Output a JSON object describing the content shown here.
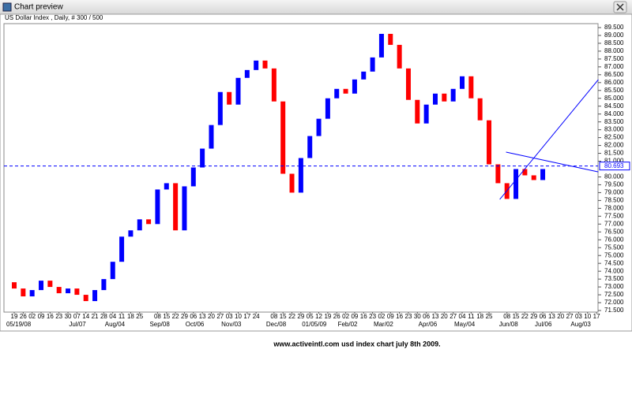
{
  "window_title": "Chart preview",
  "caption": "www.activeintl.com usd index chart july 8th 2009.",
  "chart_data": {
    "type": "candlestick",
    "title": "US Dollar Index , Daily, # 300 / 500",
    "categories": [
      "19",
      "26",
      "02",
      "09",
      "16",
      "23",
      "30",
      "07",
      "14",
      "21",
      "28",
      "04",
      "11",
      "18",
      "25",
      null,
      "08",
      "15",
      "22",
      "29",
      "06",
      "13",
      "20",
      "27",
      "03",
      "10",
      "17",
      "24",
      null,
      "08",
      "15",
      "22",
      "29",
      "05",
      "12",
      "19",
      "26",
      "02",
      "09",
      "16",
      "23",
      "02",
      "09",
      "16",
      "23",
      "30",
      "06",
      "13",
      "20",
      "27",
      "04",
      "11",
      "18",
      "25",
      null,
      "08",
      "15",
      "22",
      "29",
      "06",
      "13",
      "20",
      "27",
      "03",
      "10",
      "17"
    ],
    "period_labels": [
      "05/19/08",
      null,
      null,
      null,
      null,
      null,
      null,
      "Jul/07",
      null,
      null,
      null,
      "Aug/04",
      null,
      null,
      null,
      null,
      "Sep/08",
      null,
      null,
      null,
      "Oct/06",
      null,
      null,
      null,
      "Nov/03",
      null,
      null,
      null,
      null,
      "Dec/08",
      null,
      null,
      null,
      "01/05/09",
      null,
      null,
      null,
      "Feb/02",
      null,
      null,
      null,
      "Mar/02",
      null,
      null,
      null,
      null,
      "Apr/06",
      null,
      null,
      null,
      "May/04",
      null,
      null,
      null,
      null,
      "Jun/08",
      null,
      null,
      null,
      "Jul/06",
      null,
      null,
      null,
      "Aug/03",
      null,
      null
    ],
    "open": [
      73.3,
      72.9,
      72.4,
      72.8,
      73.4,
      73.0,
      72.6,
      72.9,
      72.5,
      72.1,
      72.8,
      73.5,
      74.6,
      76.2,
      76.6,
      77.3,
      77.0,
      79.2,
      79.6,
      76.6,
      79.4,
      80.6,
      81.8,
      83.3,
      85.4,
      84.6,
      86.3,
      86.8,
      87.4,
      86.9,
      84.8,
      80.2,
      79.0,
      81.2,
      82.6,
      83.7,
      85.0,
      85.6,
      85.3,
      86.2,
      86.7,
      87.6,
      89.1,
      88.4,
      86.9,
      84.9,
      83.4,
      84.6,
      85.3,
      84.8,
      85.6,
      86.4,
      85.0,
      83.6,
      80.8,
      79.6,
      78.6,
      80.5,
      80.1,
      79.8,
      null,
      null,
      null,
      null,
      null,
      null
    ],
    "close": [
      72.9,
      72.4,
      72.8,
      73.4,
      73.0,
      72.6,
      72.9,
      72.5,
      72.1,
      72.8,
      73.5,
      74.6,
      76.2,
      76.6,
      77.3,
      77.0,
      79.2,
      79.6,
      76.6,
      79.4,
      80.6,
      81.8,
      83.3,
      85.4,
      84.6,
      86.3,
      86.8,
      87.4,
      86.9,
      84.8,
      80.2,
      79.0,
      81.2,
      82.6,
      83.7,
      85.0,
      85.6,
      85.3,
      86.2,
      86.7,
      87.6,
      89.1,
      88.4,
      86.9,
      84.9,
      83.4,
      84.6,
      85.3,
      84.8,
      85.6,
      86.4,
      85.0,
      83.6,
      80.8,
      79.6,
      78.6,
      80.5,
      80.1,
      79.8,
      80.5,
      null,
      null,
      null,
      null,
      null,
      null
    ],
    "up_color": "#0000ff",
    "down_color": "#ff0000",
    "ylim": [
      71.4,
      89.75
    ],
    "yticks": [
      {
        "value": 71.5,
        "label": "71.500"
      },
      {
        "value": 72,
        "label": "72.000"
      },
      {
        "value": 72.5,
        "label": "72.500"
      },
      {
        "value": 73,
        "label": "73.000"
      },
      {
        "value": 73.5,
        "label": "73.500"
      },
      {
        "value": 74,
        "label": "74.000"
      },
      {
        "value": 74.5,
        "label": "74.500"
      },
      {
        "value": 75,
        "label": "75.000"
      },
      {
        "value": 75.5,
        "label": "75.500"
      },
      {
        "value": 76,
        "label": "76.000"
      },
      {
        "value": 76.5,
        "label": "76.500"
      },
      {
        "value": 77,
        "label": "77.000"
      },
      {
        "value": 77.5,
        "label": "77.500"
      },
      {
        "value": 78,
        "label": "78.000"
      },
      {
        "value": 78.5,
        "label": "78.500"
      },
      {
        "value": 79,
        "label": "79.000"
      },
      {
        "value": 79.5,
        "label": "79.500"
      },
      {
        "value": 80,
        "label": "80.000"
      },
      {
        "value": 81,
        "label": "81.000"
      },
      {
        "value": 81.5,
        "label": "81.500"
      },
      {
        "value": 82,
        "label": "82.000"
      },
      {
        "value": 82.5,
        "label": "82.500"
      },
      {
        "value": 83,
        "label": "83.000"
      },
      {
        "value": 83.5,
        "label": "83.500"
      },
      {
        "value": 84,
        "label": "84.000"
      },
      {
        "value": 84.5,
        "label": "84.500"
      },
      {
        "value": 85,
        "label": "85.000"
      },
      {
        "value": 85.5,
        "label": "85.500"
      },
      {
        "value": 86,
        "label": "86.000"
      },
      {
        "value": 86.5,
        "label": "86.500"
      },
      {
        "value": 87,
        "label": "87.000"
      },
      {
        "value": 87.5,
        "label": "87.500"
      },
      {
        "value": 88,
        "label": "88.000"
      },
      {
        "value": 88.5,
        "label": "88.500"
      },
      {
        "value": 89,
        "label": "89.000"
      },
      {
        "value": 89.5,
        "label": "89.500"
      }
    ],
    "reference_value": 80.693,
    "trendlines": [
      {
        "x": [
          54.2,
          65.2
        ],
        "y": [
          78.57,
          86.19
        ]
      },
      {
        "x": [
          54.9,
          65.2
        ],
        "y": [
          81.58,
          80.32
        ]
      }
    ],
    "line_color": "#0000ff"
  }
}
